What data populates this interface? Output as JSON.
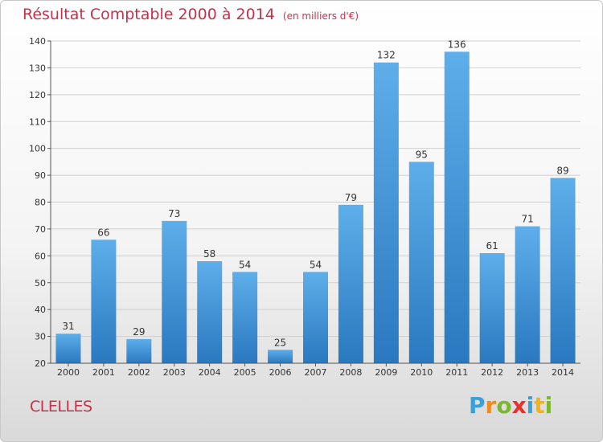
{
  "header": {
    "title": "Résultat Comptable 2000 à 2014",
    "subtitle": "(en milliers d'€)"
  },
  "footer": {
    "commune": "CLELLES",
    "logo_letters": [
      "P",
      "r",
      "o",
      "x",
      "i",
      "t",
      "i"
    ],
    "logo_colors": [
      "#3aa0d8",
      "#f08a1c",
      "#7cb82f",
      "#e8312f",
      "#3aa0d8",
      "#f0b41c",
      "#7cb82f"
    ]
  },
  "colors": {
    "bar_top": "#5eaeea",
    "bar_bottom": "#2a78bf",
    "grid": "#d0d0d0",
    "axis": "#555555"
  },
  "chart_data": {
    "type": "bar",
    "title": "Résultat Comptable 2000 à 2014",
    "subtitle": "(en milliers d'€)",
    "categories": [
      "2000",
      "2001",
      "2002",
      "2003",
      "2004",
      "2005",
      "2006",
      "2007",
      "2008",
      "2009",
      "2010",
      "2011",
      "2012",
      "2013",
      "2014"
    ],
    "values": [
      31,
      66,
      29,
      73,
      58,
      54,
      25,
      54,
      79,
      132,
      95,
      136,
      61,
      71,
      89
    ],
    "ylim": [
      20,
      140
    ],
    "yticks": [
      20,
      30,
      40,
      50,
      60,
      70,
      80,
      90,
      100,
      110,
      120,
      130,
      140
    ],
    "grid": true
  }
}
